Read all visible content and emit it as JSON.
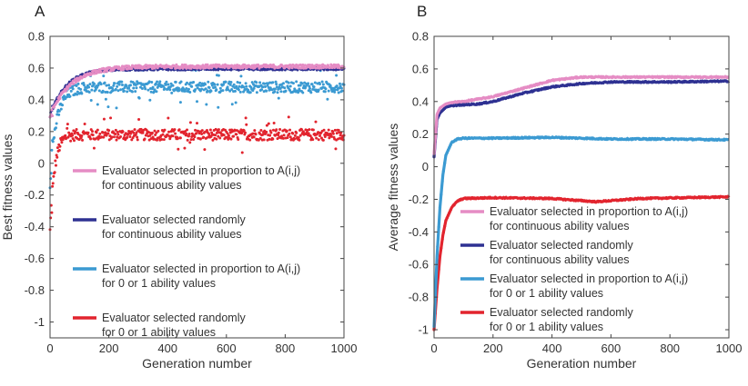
{
  "chart_data": [
    {
      "type": "scatter",
      "panel_label": "A",
      "xlabel": "Generation number",
      "ylabel": "Best fitness values",
      "xlim": [
        0,
        1000
      ],
      "ylim": [
        -1.1,
        0.8
      ],
      "xticks": [
        "0",
        "200",
        "400",
        "600",
        "800",
        "1000"
      ],
      "xtick_values": [
        0,
        200,
        400,
        600,
        800,
        1000
      ],
      "yticks": [
        "-1",
        "-0.8",
        "-0.6",
        "-0.4",
        "-0.2",
        "0",
        "0.2",
        "0.4",
        "0.6",
        "0.8"
      ],
      "ytick_values": [
        -1,
        -0.8,
        -0.6,
        -0.4,
        -0.2,
        0,
        0.2,
        0.4,
        0.6,
        0.8
      ],
      "legend_position": "lower-right",
      "series": [
        {
          "name_line1": "Evaluator selected in proportion to A(i,j)",
          "name_line2": "for continuous ability values",
          "color": "#e58cc4",
          "start": 0.3,
          "plateau": 0.61,
          "tau": 70,
          "noise": 0.012,
          "outlier": 0
        },
        {
          "name_line1": "Evaluator selected randomly",
          "name_line2": "for continuous ability values",
          "color": "#2e3192",
          "start": 0.3,
          "plateau": 0.595,
          "tau": 55,
          "noise": 0.008,
          "outlier": 0
        },
        {
          "name_line1": "Evaluator selected in proportion to A(i,j)",
          "name_line2": "for 0 or 1 ability values",
          "color": "#3b9ad2",
          "start": -0.05,
          "plateau": 0.48,
          "tau": 25,
          "noise": 0.035,
          "outlier": 0.05
        },
        {
          "name_line1": "Evaluator selected randomly",
          "name_line2": "for 0 or 1 ability values",
          "color": "#e2242e",
          "start": -0.45,
          "plateau": 0.18,
          "tau": 15,
          "noise": 0.035,
          "outlier": 0.05
        }
      ]
    },
    {
      "type": "line",
      "panel_label": "B",
      "xlabel": "Generation number",
      "ylabel": "Average fitness values",
      "xlim": [
        0,
        1000
      ],
      "ylim": [
        -1.05,
        0.8
      ],
      "xticks": [
        "0",
        "200",
        "400",
        "600",
        "800",
        "1000"
      ],
      "xtick_values": [
        0,
        200,
        400,
        600,
        800,
        1000
      ],
      "yticks": [
        "-1",
        "-0.8",
        "-0.6",
        "-0.4",
        "-0.2",
        "0",
        "0.2",
        "0.4",
        "0.6",
        "0.8"
      ],
      "ytick_values": [
        -1,
        -0.8,
        -0.6,
        -0.4,
        -0.2,
        0,
        0.2,
        0.4,
        0.6,
        0.8
      ],
      "legend_position": "lower-right",
      "series": [
        {
          "name_line1": "Evaluator selected in proportion to A(i,j)",
          "name_line2": "for continuous ability values",
          "color": "#e58cc4",
          "points": [
            [
              0,
              0.08
            ],
            [
              10,
              0.32
            ],
            [
              20,
              0.36
            ],
            [
              40,
              0.385
            ],
            [
              60,
              0.395
            ],
            [
              100,
              0.4
            ],
            [
              150,
              0.415
            ],
            [
              200,
              0.43
            ],
            [
              300,
              0.48
            ],
            [
              400,
              0.53
            ],
            [
              500,
              0.55
            ],
            [
              600,
              0.55
            ],
            [
              800,
              0.55
            ],
            [
              1000,
              0.55
            ]
          ]
        },
        {
          "name_line1": "Evaluator selected randomly",
          "name_line2": "for continuous ability values",
          "color": "#2e3192",
          "points": [
            [
              0,
              0.06
            ],
            [
              10,
              0.29
            ],
            [
              20,
              0.33
            ],
            [
              40,
              0.365
            ],
            [
              60,
              0.375
            ],
            [
              100,
              0.38
            ],
            [
              150,
              0.385
            ],
            [
              200,
              0.4
            ],
            [
              300,
              0.45
            ],
            [
              400,
              0.49
            ],
            [
              500,
              0.51
            ],
            [
              600,
              0.52
            ],
            [
              800,
              0.52
            ],
            [
              1000,
              0.525
            ]
          ]
        },
        {
          "name_line1": "Evaluator selected in proportion to A(i,j)",
          "name_line2": "for 0 or 1 ability values",
          "color": "#3b9ad2",
          "points": [
            [
              0,
              -0.98
            ],
            [
              10,
              -0.55
            ],
            [
              20,
              -0.25
            ],
            [
              30,
              -0.05
            ],
            [
              40,
              0.07
            ],
            [
              60,
              0.15
            ],
            [
              80,
              0.17
            ],
            [
              100,
              0.175
            ],
            [
              200,
              0.175
            ],
            [
              400,
              0.18
            ],
            [
              600,
              0.17
            ],
            [
              800,
              0.17
            ],
            [
              1000,
              0.165
            ]
          ]
        },
        {
          "name_line1": "Evaluator selected randomly",
          "name_line2": "for 0 or 1 ability values",
          "color": "#e2242e",
          "points": [
            [
              0,
              -1.0
            ],
            [
              10,
              -0.75
            ],
            [
              20,
              -0.55
            ],
            [
              30,
              -0.42
            ],
            [
              40,
              -0.33
            ],
            [
              60,
              -0.25
            ],
            [
              80,
              -0.21
            ],
            [
              100,
              -0.195
            ],
            [
              200,
              -0.19
            ],
            [
              400,
              -0.195
            ],
            [
              550,
              -0.215
            ],
            [
              700,
              -0.195
            ],
            [
              1000,
              -0.185
            ]
          ]
        }
      ]
    }
  ]
}
